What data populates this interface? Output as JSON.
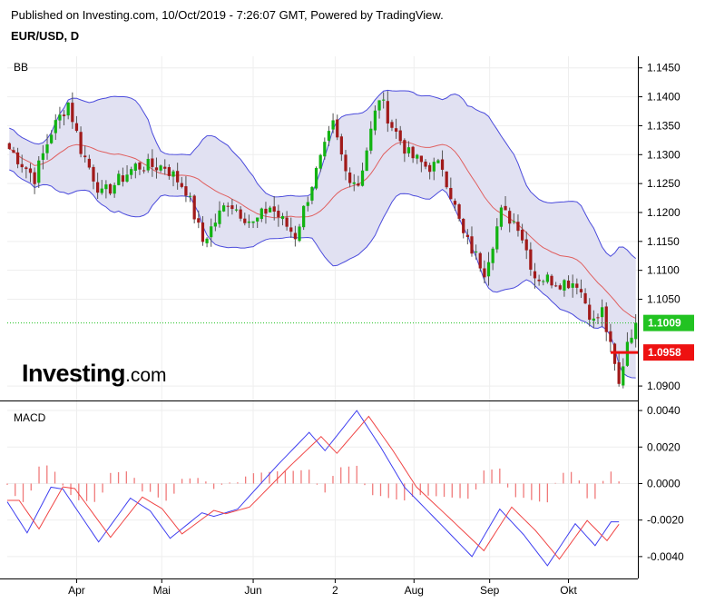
{
  "header": {
    "published": "Published on Investing.com, 10/Oct/2019 - 7:26:07 GMT, Powered by TradingView.",
    "symbol": "EUR/USD, D"
  },
  "logo": {
    "brand": "Investing",
    "suffix": ".com"
  },
  "colors": {
    "up": "#12b312",
    "down": "#a11a1a",
    "bb_band": "#4b4bdc",
    "bb_fill": "#e1e1f2",
    "bb_mid": "#e06060",
    "macd_line": "#3f3ff0",
    "signal_line": "#f04545",
    "hist": "#f07a7a",
    "last_price_badge": "#22c322",
    "marker_badge": "#ee1111"
  },
  "chart_data": [
    {
      "type": "candlestick",
      "panel_label": "BB",
      "indicator": "Bollinger Bands",
      "ylim": [
        1.0875,
        1.147
      ],
      "y_ticks": [
        "1.1450",
        "1.1400",
        "1.1350",
        "1.1300",
        "1.1250",
        "1.1200",
        "1.1150",
        "1.1100",
        "1.1050",
        "1.1009",
        "1.0958",
        "1.0900"
      ],
      "x_ticks": [
        "Apr",
        "Mai",
        "Jun",
        "2",
        "Aug",
        "Sep",
        "Okt"
      ],
      "n_bars": 150,
      "anchors": [
        [
          0,
          1.131
        ],
        [
          6,
          1.126
        ],
        [
          10,
          1.134
        ],
        [
          14,
          1.139
        ],
        [
          17,
          1.131
        ],
        [
          22,
          1.123
        ],
        [
          30,
          1.128
        ],
        [
          37,
          1.128
        ],
        [
          42,
          1.124
        ],
        [
          46,
          1.115
        ],
        [
          52,
          1.122
        ],
        [
          58,
          1.118
        ],
        [
          62,
          1.121
        ],
        [
          68,
          1.116
        ],
        [
          72,
          1.125
        ],
        [
          77,
          1.135
        ],
        [
          80,
          1.127
        ],
        [
          83,
          1.125
        ],
        [
          88,
          1.14
        ],
        [
          91,
          1.135
        ],
        [
          95,
          1.13
        ],
        [
          99,
          1.128
        ],
        [
          103,
          1.128
        ],
        [
          108,
          1.116
        ],
        [
          113,
          1.11
        ],
        [
          117,
          1.12
        ],
        [
          121,
          1.118
        ],
        [
          125,
          1.109
        ],
        [
          131,
          1.108
        ],
        [
          135,
          1.108
        ],
        [
          139,
          1.101
        ],
        [
          141,
          1.103
        ],
        [
          145,
          1.09
        ],
        [
          147,
          1.098
        ],
        [
          149,
          1.1009
        ]
      ],
      "last_price": "1.1009",
      "marker_price": "1.0958"
    },
    {
      "type": "line",
      "panel_label": "MACD",
      "ylim": [
        -0.0052,
        0.0045
      ],
      "y_ticks": [
        "0.0040",
        "0.0020",
        "0.0000",
        "-0.0020",
        "-0.0040"
      ],
      "macd_anchors": [
        [
          0,
          -0.001
        ],
        [
          5,
          -0.0027
        ],
        [
          11,
          -0.0002
        ],
        [
          14,
          -0.0003
        ],
        [
          23,
          -0.0032
        ],
        [
          31,
          -0.0008
        ],
        [
          36,
          -0.0015
        ],
        [
          41,
          -0.003
        ],
        [
          49,
          -0.0016
        ],
        [
          52,
          -0.0018
        ],
        [
          58,
          -0.0014
        ],
        [
          68,
          0.001
        ],
        [
          76,
          0.0028
        ],
        [
          80,
          0.0018
        ],
        [
          88,
          0.004
        ],
        [
          94,
          0.002
        ],
        [
          100,
          -0.0002
        ],
        [
          109,
          -0.0022
        ],
        [
          117,
          -0.004
        ],
        [
          124,
          -0.0014
        ],
        [
          130,
          -0.0028
        ],
        [
          136,
          -0.0045
        ],
        [
          143,
          -0.0022
        ],
        [
          148,
          -0.0034
        ],
        [
          152,
          -0.0021
        ]
      ],
      "signal_lag": 3
    }
  ]
}
